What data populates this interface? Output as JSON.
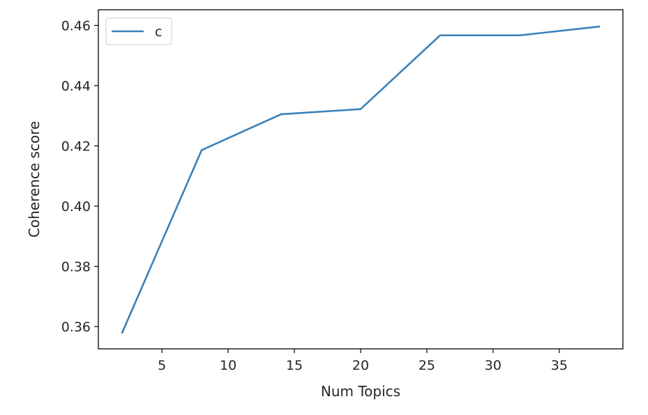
{
  "chart_data": {
    "type": "line",
    "title": "",
    "xlabel": "Num Topics",
    "ylabel": "Coherence score",
    "xlim": [
      0.2,
      39.8
    ],
    "ylim": [
      0.3526,
      0.4652
    ],
    "xticks": [
      5,
      10,
      15,
      20,
      25,
      30,
      35
    ],
    "xtick_labels": [
      "5",
      "10",
      "15",
      "20",
      "25",
      "30",
      "35"
    ],
    "yticks": [
      0.36,
      0.38,
      0.4,
      0.42,
      0.44,
      0.46
    ],
    "ytick_labels": [
      "0.36",
      "0.38",
      "0.40",
      "0.42",
      "0.44",
      "0.46"
    ],
    "grid": false,
    "legend_position": "upper-left",
    "series": [
      {
        "name": "c",
        "color": "#3b80b8",
        "x": [
          2,
          8,
          14,
          20,
          26,
          32,
          38
        ],
        "values": [
          0.358,
          0.4186,
          0.4305,
          0.4322,
          0.4567,
          0.4567,
          0.4596
        ]
      }
    ]
  }
}
